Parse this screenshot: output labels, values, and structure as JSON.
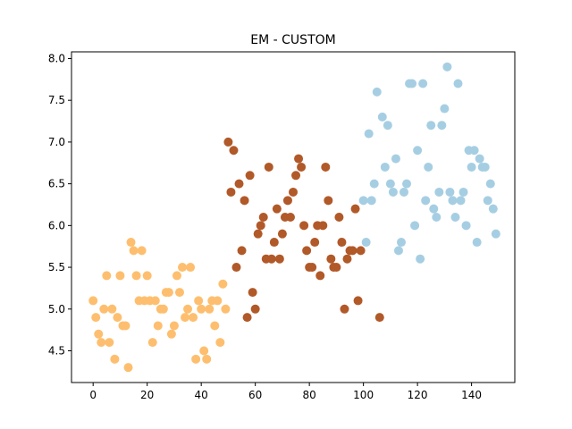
{
  "chart_data": {
    "type": "scatter",
    "title": "EM - CUSTOM",
    "xlabel": "",
    "ylabel": "",
    "xlim": [
      -8,
      156
    ],
    "ylim": [
      4.12,
      8.08
    ],
    "x_ticks": [
      0,
      20,
      40,
      60,
      80,
      100,
      120,
      140
    ],
    "y_ticks": [
      4.5,
      5.0,
      5.5,
      6.0,
      6.5,
      7.0,
      7.5,
      8.0
    ],
    "grid": false,
    "legend": "none",
    "colors": {
      "cluster_orange": "#fdbf6f",
      "cluster_brown": "#b15928",
      "cluster_blue": "#a6cee3"
    },
    "series": [
      {
        "color_key": "cluster_orange",
        "points": [
          [
            0,
            5.1
          ],
          [
            1,
            4.9
          ],
          [
            2,
            4.7
          ],
          [
            3,
            4.6
          ],
          [
            4,
            5.0
          ],
          [
            5,
            5.4
          ],
          [
            6,
            4.6
          ],
          [
            7,
            5.0
          ],
          [
            8,
            4.4
          ],
          [
            9,
            4.9
          ],
          [
            10,
            5.4
          ],
          [
            11,
            4.8
          ],
          [
            12,
            4.8
          ],
          [
            13,
            4.3
          ],
          [
            14,
            5.8
          ],
          [
            15,
            5.7
          ],
          [
            16,
            5.4
          ],
          [
            17,
            5.1
          ],
          [
            18,
            5.7
          ],
          [
            19,
            5.1
          ],
          [
            20,
            5.4
          ],
          [
            21,
            5.1
          ],
          [
            22,
            4.6
          ],
          [
            23,
            5.1
          ],
          [
            24,
            4.8
          ],
          [
            25,
            5.0
          ],
          [
            26,
            5.0
          ],
          [
            27,
            5.2
          ],
          [
            28,
            5.2
          ],
          [
            29,
            4.7
          ],
          [
            30,
            4.8
          ],
          [
            31,
            5.4
          ],
          [
            32,
            5.2
          ],
          [
            33,
            5.5
          ],
          [
            34,
            4.9
          ],
          [
            35,
            5.0
          ],
          [
            36,
            5.5
          ],
          [
            37,
            4.9
          ],
          [
            38,
            4.4
          ],
          [
            39,
            5.1
          ],
          [
            40,
            5.0
          ],
          [
            41,
            4.5
          ],
          [
            42,
            4.4
          ],
          [
            43,
            5.0
          ],
          [
            44,
            5.1
          ],
          [
            45,
            4.8
          ],
          [
            46,
            5.1
          ],
          [
            47,
            4.6
          ],
          [
            48,
            5.3
          ],
          [
            49,
            5.0
          ]
        ]
      },
      {
        "color_key": "cluster_brown",
        "points": [
          [
            50,
            7.0
          ],
          [
            51,
            6.4
          ],
          [
            52,
            6.9
          ],
          [
            53,
            5.5
          ],
          [
            54,
            6.5
          ],
          [
            55,
            5.7
          ],
          [
            56,
            6.3
          ],
          [
            57,
            4.9
          ],
          [
            58,
            6.6
          ],
          [
            59,
            5.2
          ],
          [
            60,
            5.0
          ],
          [
            61,
            5.9
          ],
          [
            62,
            6.0
          ],
          [
            63,
            6.1
          ],
          [
            64,
            5.6
          ],
          [
            65,
            6.7
          ],
          [
            66,
            5.6
          ],
          [
            67,
            5.8
          ],
          [
            68,
            6.2
          ],
          [
            69,
            5.6
          ],
          [
            70,
            5.9
          ],
          [
            71,
            6.1
          ],
          [
            72,
            6.3
          ],
          [
            73,
            6.1
          ],
          [
            74,
            6.4
          ],
          [
            75,
            6.6
          ],
          [
            76,
            6.8
          ],
          [
            77,
            6.7
          ],
          [
            78,
            6.0
          ],
          [
            79,
            5.7
          ],
          [
            80,
            5.5
          ],
          [
            81,
            5.5
          ],
          [
            82,
            5.8
          ],
          [
            83,
            6.0
          ],
          [
            84,
            5.4
          ],
          [
            85,
            6.0
          ],
          [
            86,
            6.7
          ],
          [
            87,
            6.3
          ],
          [
            88,
            5.6
          ],
          [
            89,
            5.5
          ],
          [
            90,
            5.5
          ],
          [
            91,
            6.1
          ],
          [
            92,
            5.8
          ],
          [
            93,
            5.0
          ],
          [
            94,
            5.6
          ],
          [
            95,
            5.7
          ],
          [
            96,
            5.7
          ],
          [
            97,
            6.2
          ],
          [
            98,
            5.1
          ],
          [
            99,
            5.7
          ],
          [
            106,
            4.9
          ]
        ]
      },
      {
        "color_key": "cluster_blue",
        "points": [
          [
            100,
            6.3
          ],
          [
            101,
            5.8
          ],
          [
            102,
            7.1
          ],
          [
            103,
            6.3
          ],
          [
            104,
            6.5
          ],
          [
            105,
            7.6
          ],
          [
            107,
            7.3
          ],
          [
            108,
            6.7
          ],
          [
            109,
            7.2
          ],
          [
            110,
            6.5
          ],
          [
            111,
            6.4
          ],
          [
            112,
            6.8
          ],
          [
            113,
            5.7
          ],
          [
            114,
            5.8
          ],
          [
            115,
            6.4
          ],
          [
            116,
            6.5
          ],
          [
            117,
            7.7
          ],
          [
            118,
            7.7
          ],
          [
            119,
            6.0
          ],
          [
            120,
            6.9
          ],
          [
            121,
            5.6
          ],
          [
            122,
            7.7
          ],
          [
            123,
            6.3
          ],
          [
            124,
            6.7
          ],
          [
            125,
            7.2
          ],
          [
            126,
            6.2
          ],
          [
            127,
            6.1
          ],
          [
            128,
            6.4
          ],
          [
            129,
            7.2
          ],
          [
            130,
            7.4
          ],
          [
            131,
            7.9
          ],
          [
            132,
            6.4
          ],
          [
            133,
            6.3
          ],
          [
            134,
            6.1
          ],
          [
            135,
            7.7
          ],
          [
            136,
            6.3
          ],
          [
            137,
            6.4
          ],
          [
            138,
            6.0
          ],
          [
            139,
            6.9
          ],
          [
            140,
            6.7
          ],
          [
            141,
            6.9
          ],
          [
            142,
            5.8
          ],
          [
            143,
            6.8
          ],
          [
            144,
            6.7
          ],
          [
            145,
            6.7
          ],
          [
            146,
            6.3
          ],
          [
            147,
            6.5
          ],
          [
            148,
            6.2
          ],
          [
            149,
            5.9
          ]
        ]
      }
    ]
  }
}
